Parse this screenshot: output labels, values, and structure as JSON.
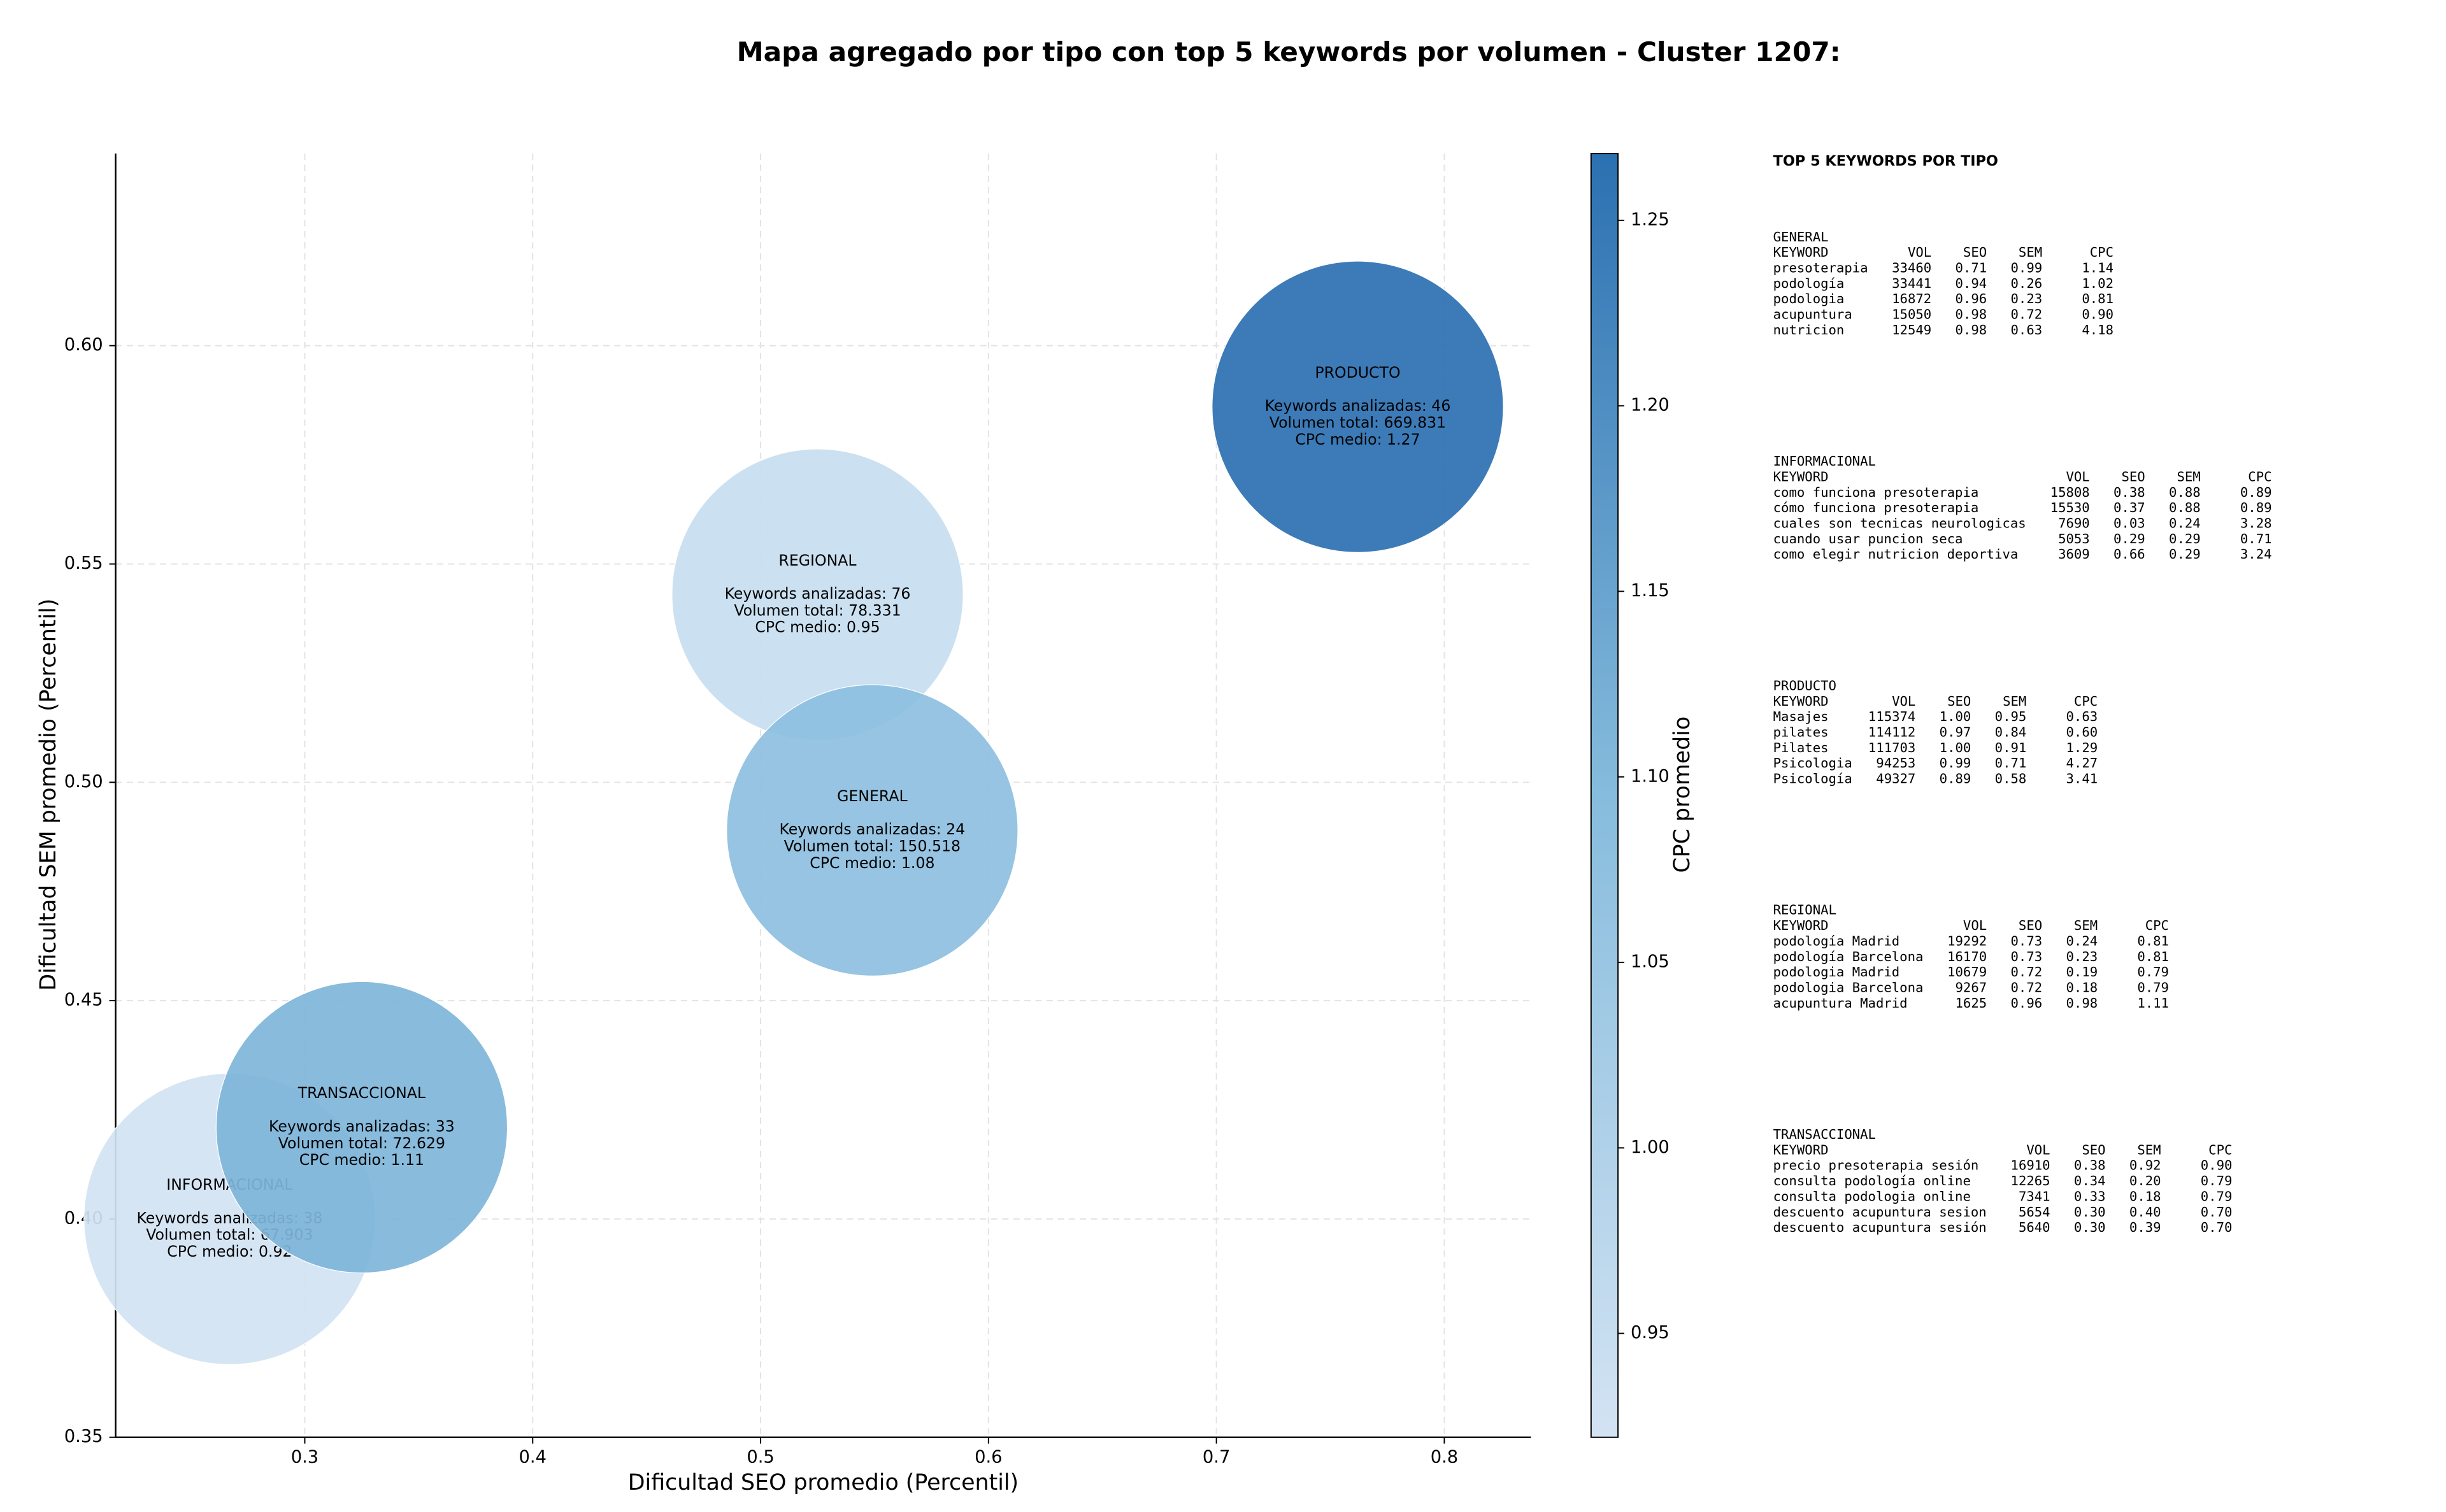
{
  "chart_data": {
    "type": "bubble",
    "title": "Mapa agregado por tipo con top 5 keywords por volumen - Cluster 1207:",
    "x_label": "Dificultad SEO promedio (Percentil)",
    "y_label": "Dificultad SEM promedio (Percentil)",
    "xlim": [
      0.217,
      0.838
    ],
    "ylim": [
      0.35,
      0.644
    ],
    "xticks": [
      0.3,
      0.4,
      0.5,
      0.6,
      0.7,
      0.8
    ],
    "yticks": [
      0.35,
      {
        "value": 0.4,
        "label": "0.40"
      },
      0.45,
      {
        "value": 0.5,
        "label": "0.50"
      },
      0.55,
      {
        "value": 0.6,
        "label": "0.60"
      }
    ],
    "grid": true,
    "colorbar_label": "CPC promedio",
    "clim": [
      0.922,
      1.268
    ],
    "cticks": [
      0.95,
      {
        "value": 1.0,
        "label": "1.00"
      },
      1.05,
      {
        "value": 1.1,
        "label": "1.10"
      },
      1.15,
      {
        "value": 1.2,
        "label": "1.20"
      },
      1.25
    ],
    "colormap": [
      "#d3e3f3",
      "#86bcdd",
      "#2b70b1"
    ],
    "points": [
      {
        "name": "PRODUCTO",
        "x": 0.762,
        "y": 0.586,
        "cpc": 1.27,
        "lines": [
          "Keywords analizadas: 46",
          "Volumen total: 669.831",
          "CPC medio: 1.27"
        ]
      },
      {
        "name": "REGIONAL",
        "x": 0.525,
        "y": 0.543,
        "cpc": 0.95,
        "lines": [
          "Keywords analizadas: 76",
          "Volumen total: 78.331",
          "CPC medio: 0.95"
        ]
      },
      {
        "name": "GENERAL",
        "x": 0.549,
        "y": 0.489,
        "cpc": 1.08,
        "lines": [
          "Keywords analizadas: 24",
          "Volumen total: 150.518",
          "CPC medio: 1.08"
        ]
      },
      {
        "name": "INFORMACIONAL",
        "x": 0.267,
        "y": 0.4,
        "cpc": 0.92,
        "lines": [
          "Keywords analizadas: 38",
          "Volumen total: 67.903",
          "CPC medio: 0.92"
        ]
      },
      {
        "name": "TRANSACCIONAL",
        "x": 0.325,
        "y": 0.421,
        "cpc": 1.11,
        "lines": [
          "Keywords analizadas: 33",
          "Volumen total: 72.629",
          "CPC medio: 1.11"
        ]
      }
    ]
  },
  "keyword_panel": {
    "title": "TOP 5 KEYWORDS POR TIPO",
    "sections": [
      {
        "name": "GENERAL",
        "header": [
          "KEYWORD",
          "VOL",
          "SEO",
          "SEM",
          "CPC"
        ],
        "rows": [
          [
            "presoterapia",
            "33460",
            "0.71",
            "0.99",
            "1.14"
          ],
          [
            "podología",
            "33441",
            "0.94",
            "0.26",
            "1.02"
          ],
          [
            "podologia",
            "16872",
            "0.96",
            "0.23",
            "0.81"
          ],
          [
            "acupuntura",
            "15050",
            "0.98",
            "0.72",
            "0.90"
          ],
          [
            "nutricion",
            "12549",
            "0.98",
            "0.63",
            "4.18"
          ]
        ]
      },
      {
        "name": "INFORMACIONAL",
        "header": [
          "KEYWORD",
          "VOL",
          "SEO",
          "SEM",
          "CPC"
        ],
        "rows": [
          [
            "como funciona presoterapia",
            "15808",
            "0.38",
            "0.88",
            "0.89"
          ],
          [
            "cómo funciona presoterapia",
            "15530",
            "0.37",
            "0.88",
            "0.89"
          ],
          [
            "cuales son tecnicas neurologicas",
            "7690",
            "0.03",
            "0.24",
            "3.28"
          ],
          [
            "cuando usar puncion seca",
            "5053",
            "0.29",
            "0.29",
            "0.71"
          ],
          [
            "como elegir nutricion deportiva",
            "3609",
            "0.66",
            "0.29",
            "3.24"
          ]
        ]
      },
      {
        "name": "PRODUCTO",
        "header": [
          "KEYWORD",
          "VOL",
          "SEO",
          "SEM",
          "CPC"
        ],
        "rows": [
          [
            "Masajes",
            "115374",
            "1.00",
            "0.95",
            "0.63"
          ],
          [
            "pilates",
            "114112",
            "0.97",
            "0.84",
            "0.60"
          ],
          [
            "Pilates",
            "111703",
            "1.00",
            "0.91",
            "1.29"
          ],
          [
            "Psicologia",
            "94253",
            "0.99",
            "0.71",
            "4.27"
          ],
          [
            "Psicología",
            "49327",
            "0.89",
            "0.58",
            "3.41"
          ]
        ]
      },
      {
        "name": "REGIONAL",
        "header": [
          "KEYWORD",
          "VOL",
          "SEO",
          "SEM",
          "CPC"
        ],
        "rows": [
          [
            "podología Madrid",
            "19292",
            "0.73",
            "0.24",
            "0.81"
          ],
          [
            "podología Barcelona",
            "16170",
            "0.73",
            "0.23",
            "0.81"
          ],
          [
            "podologia Madrid",
            "10679",
            "0.72",
            "0.19",
            "0.79"
          ],
          [
            "podologia Barcelona",
            "9267",
            "0.72",
            "0.18",
            "0.79"
          ],
          [
            "acupuntura Madrid",
            "1625",
            "0.96",
            "0.98",
            "1.11"
          ]
        ]
      },
      {
        "name": "TRANSACCIONAL",
        "header": [
          "KEYWORD",
          "VOL",
          "SEO",
          "SEM",
          "CPC"
        ],
        "rows": [
          [
            "precio presoterapia sesión",
            "16910",
            "0.38",
            "0.92",
            "0.90"
          ],
          [
            "consulta podología online",
            "12265",
            "0.34",
            "0.20",
            "0.79"
          ],
          [
            "consulta podologia online",
            "7341",
            "0.33",
            "0.18",
            "0.79"
          ],
          [
            "descuento acupuntura sesion",
            "5654",
            "0.30",
            "0.40",
            "0.70"
          ],
          [
            "descuento acupuntura sesión",
            "5640",
            "0.30",
            "0.39",
            "0.70"
          ]
        ]
      }
    ]
  }
}
